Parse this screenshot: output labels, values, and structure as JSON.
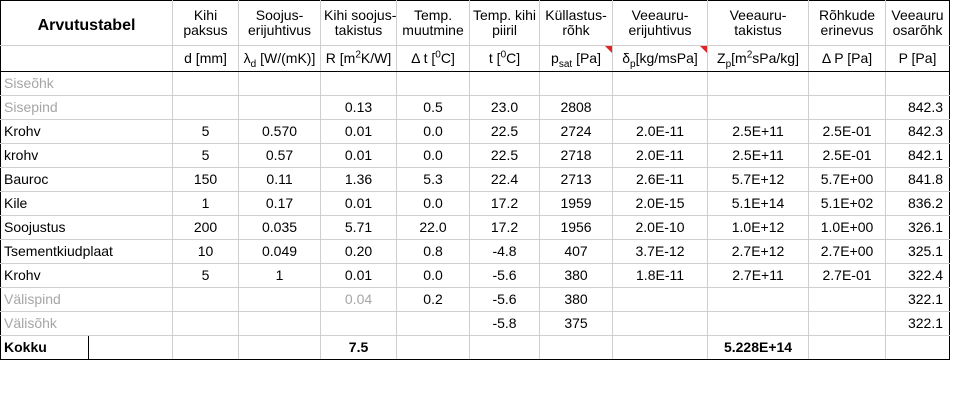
{
  "title": "Arvutustabel",
  "headers": {
    "c1": {
      "line1": "Kihi",
      "line2": "paksus",
      "unit": "d [mm]"
    },
    "c2": {
      "line1": "Soojus-",
      "line2": "erijuhtivus",
      "unit_main": "λ",
      "unit_sub": "d",
      "unit_rest": " [W/(mK)]"
    },
    "c3": {
      "line1": "Kihi soojus-",
      "line2": "takistus",
      "unit_pre": "R [m",
      "unit_sup": "2",
      "unit_post": "K/W]"
    },
    "c4": {
      "line1": "Temp.",
      "line2": "muutmine",
      "unit_pre": "Δ t [",
      "unit_sup": "0",
      "unit_post": "C]"
    },
    "c5": {
      "line1": "Temp. kihi",
      "line2": "piiril",
      "unit_pre": "t [",
      "unit_sup": "0",
      "unit_post": "C]"
    },
    "c6": {
      "line1": "Küllastus-",
      "line2": "rõhk",
      "unit_main": "p",
      "unit_sub": "sat",
      "unit_rest": " [Pa]"
    },
    "c7": {
      "line1": "Veeauru-",
      "line2": "erijuhtivus",
      "unit_main": "δ",
      "unit_sub": "p",
      "unit_rest": "[kg/msPa]"
    },
    "c8": {
      "line1": "Veeauru-",
      "line2": "takistus",
      "unit_main": "Z",
      "unit_sub": "p",
      "unit_pre2": "[m",
      "unit_sup": "2",
      "unit_rest": "sPa/kg]"
    },
    "c9": {
      "line1": "Rõhkude",
      "line2": "erinevus",
      "unit": "Δ P [Pa]"
    },
    "c10": {
      "line1": "Veeauru",
      "line2": "osarõhk",
      "unit": "P [Pa]"
    }
  },
  "rows": [
    {
      "name": "Siseõhk",
      "gray": true,
      "d": "",
      "lam": "",
      "R": "",
      "dt": "",
      "t": "",
      "psat": "",
      "delta": "",
      "Z": "",
      "dP": "",
      "P": ""
    },
    {
      "name": "Sisepind",
      "gray": true,
      "d": "",
      "lam": "",
      "R": "0.13",
      "dt": "0.5",
      "t": "23.0",
      "psat": "2808",
      "delta": "",
      "Z": "",
      "dP": "",
      "P": "842.3"
    },
    {
      "name": "Krohv",
      "gray": false,
      "d": "5",
      "lam": "0.570",
      "R": "0.01",
      "dt": "0.0",
      "t": "22.5",
      "psat": "2724",
      "delta": "2.0E-11",
      "Z": "2.5E+11",
      "dP": "2.5E-01",
      "P": "842.3"
    },
    {
      "name": "krohv",
      "gray": false,
      "d": "5",
      "lam": "0.57",
      "R": "0.01",
      "dt": "0.0",
      "t": "22.5",
      "psat": "2718",
      "delta": "2.0E-11",
      "Z": "2.5E+11",
      "dP": "2.5E-01",
      "P": "842.1"
    },
    {
      "name": "Bauroc",
      "gray": false,
      "d": "150",
      "lam": "0.11",
      "R": "1.36",
      "dt": "5.3",
      "t": "22.4",
      "psat": "2713",
      "delta": "2.6E-11",
      "Z": "5.7E+12",
      "dP": "5.7E+00",
      "P": "841.8"
    },
    {
      "name": "Kile",
      "gray": false,
      "d": "1",
      "lam": "0.17",
      "R": "0.01",
      "dt": "0.0",
      "t": "17.2",
      "psat": "1959",
      "delta": "2.0E-15",
      "Z": "5.1E+14",
      "dP": "5.1E+02",
      "P": "836.2"
    },
    {
      "name": "Soojustus",
      "gray": false,
      "d": "200",
      "lam": "0.035",
      "R": "5.71",
      "dt": "22.0",
      "t": "17.2",
      "psat": "1956",
      "delta": "2.0E-10",
      "Z": "1.0E+12",
      "dP": "1.0E+00",
      "P": "326.1"
    },
    {
      "name": "Tsementkiudplaat",
      "gray": false,
      "d": "10",
      "lam": "0.049",
      "R": "0.20",
      "dt": "0.8",
      "t": "-4.8",
      "psat": "407",
      "delta": "3.7E-12",
      "Z": "2.7E+12",
      "dP": "2.7E+00",
      "P": "325.1"
    },
    {
      "name": "Krohv",
      "gray": false,
      "d": "5",
      "lam": "1",
      "R": "0.01",
      "dt": "0.0",
      "t": "-5.6",
      "psat": "380",
      "delta": "1.8E-11",
      "Z": "2.7E+11",
      "dP": "2.7E-01",
      "P": "322.4"
    },
    {
      "name": "Välispind",
      "gray": true,
      "d": "",
      "lam": "",
      "R": "0.04",
      "Rgray": true,
      "dt": "0.2",
      "t": "-5.6",
      "psat": "380",
      "delta": "",
      "Z": "",
      "dP": "",
      "P": "322.1"
    },
    {
      "name": "Välisõhk",
      "gray": true,
      "d": "",
      "lam": "",
      "R": "",
      "dt": "",
      "t": "-5.8",
      "psat": "375",
      "delta": "",
      "Z": "",
      "dP": "",
      "P": "322.1"
    }
  ],
  "total": {
    "name": "Kokku",
    "R": "7.5",
    "Z": "5.228E+14"
  },
  "colors": {
    "gray_text": "#a6a6a6",
    "comment_marker": "#e02424",
    "grid": "#cfcfcf"
  }
}
